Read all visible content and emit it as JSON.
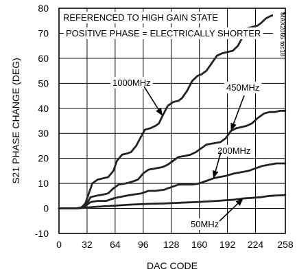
{
  "chart_data": {
    "type": "line",
    "ylabel": "S21 PHASE CHANGE (DEG)",
    "xlabel": "DAC CODE",
    "xlim": [
      0,
      258
    ],
    "ylim": [
      -10,
      80
    ],
    "xticks": [
      0,
      32,
      64,
      96,
      128,
      160,
      192,
      224,
      258
    ],
    "yticks": [
      -10,
      0,
      10,
      20,
      30,
      40,
      50,
      60,
      70,
      80
    ],
    "grid": true,
    "annotations": {
      "line1": "REFERENCED TO HIGH GAIN STATE",
      "line2": "POSITIVE PHASE = ELECTRICALLY SHORTER",
      "corner_tag": "MAX2065 toc18"
    },
    "series": [
      {
        "name": "1000MHz",
        "x": [
          0,
          10,
          20,
          26,
          30,
          34,
          38,
          44,
          50,
          56,
          62,
          66,
          72,
          78,
          82,
          88,
          94,
          98,
          104,
          110,
          114,
          118,
          124,
          130,
          136,
          140,
          146,
          152,
          158,
          162,
          168,
          174,
          180,
          186,
          192,
          198,
          204,
          210,
          214,
          220,
          226,
          230,
          236,
          242,
          248,
          252,
          258
        ],
        "y": [
          0,
          0,
          0,
          0.5,
          2,
          6,
          10,
          11.5,
          12,
          12.5,
          15,
          19,
          21.5,
          22,
          22.5,
          25,
          29,
          31.5,
          32,
          33,
          34,
          37,
          41,
          42.5,
          43,
          44,
          47,
          51,
          53,
          53.5,
          55,
          58,
          61,
          62,
          62.5,
          63,
          65,
          69,
          72,
          72.5,
          73,
          74,
          76,
          77,
          77.5,
          77.5,
          78
        ]
      },
      {
        "name": "450MHz",
        "x": [
          0,
          10,
          20,
          28,
          32,
          36,
          42,
          50,
          56,
          62,
          68,
          76,
          82,
          90,
          96,
          102,
          110,
          118,
          124,
          130,
          136,
          144,
          150,
          156,
          162,
          168,
          176,
          184,
          190,
          196,
          202,
          208,
          214,
          220,
          226,
          234,
          240,
          246,
          252,
          258
        ],
        "y": [
          0,
          0,
          0,
          0.5,
          2,
          4.5,
          5,
          5.5,
          6,
          8,
          9.5,
          10,
          10.5,
          11.5,
          14,
          15.5,
          16,
          16.5,
          17.5,
          19,
          20.5,
          21,
          21.5,
          22.5,
          24,
          25.5,
          26,
          26.5,
          28,
          31,
          32,
          32.5,
          33,
          34,
          36,
          38,
          38.5,
          38.5,
          39,
          39
        ]
      },
      {
        "name": "200MHz",
        "x": [
          0,
          10,
          20,
          28,
          32,
          36,
          44,
          54,
          62,
          68,
          76,
          84,
          94,
          102,
          110,
          120,
          128,
          136,
          144,
          152,
          160,
          168,
          176,
          182,
          190,
          200,
          208,
          216,
          224,
          232,
          240,
          248,
          258
        ],
        "y": [
          0,
          0,
          0,
          0.5,
          1.5,
          2.5,
          3,
          3,
          4,
          4.5,
          5,
          5.5,
          6,
          7,
          7,
          7.5,
          8.5,
          9.5,
          9.5,
          9.5,
          10,
          11,
          12,
          12.5,
          13,
          14,
          14.5,
          15,
          16,
          17,
          17.5,
          18,
          18
        ]
      },
      {
        "name": "50MHz",
        "x": [
          0,
          10,
          20,
          30,
          40,
          60,
          80,
          100,
          120,
          140,
          160,
          180,
          200,
          210,
          220,
          230,
          240,
          250,
          258
        ],
        "y": [
          0,
          0,
          0,
          0.3,
          0.6,
          1,
          1.5,
          1.8,
          2,
          2.3,
          2.6,
          3,
          3.5,
          4,
          4.2,
          4.5,
          5,
          5.2,
          5.3
        ]
      }
    ]
  }
}
